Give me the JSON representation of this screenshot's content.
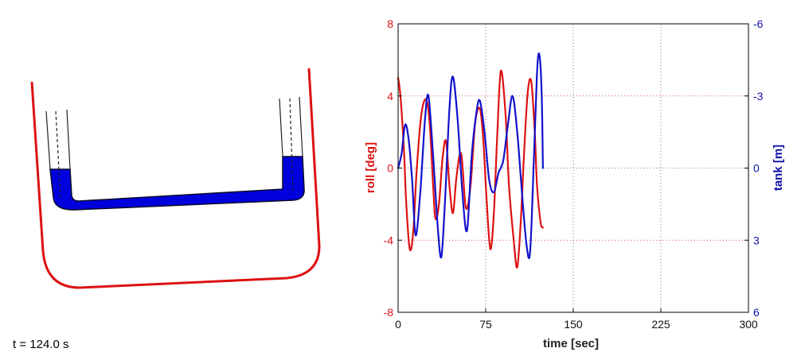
{
  "simulation": {
    "time_label": "t = 124.0 s",
    "ship_hull_color": "#dd1111",
    "water_color": "#0000dd"
  },
  "chart_data": {
    "type": "line",
    "xlabel": "time [sec]",
    "ylabel_left": "roll [deg]",
    "ylabel_right": "tank [m]",
    "xlim": [
      0,
      300
    ],
    "ylim_left": [
      -8,
      8
    ],
    "ylim_right": [
      6,
      -6
    ],
    "x_ticks": [
      "0",
      "75",
      "150",
      "225",
      "300"
    ],
    "y_ticks_left": [
      "8",
      "4",
      "0",
      "-4",
      "-8"
    ],
    "y_ticks_right": [
      "-6",
      "-3",
      "0",
      "3",
      "6"
    ],
    "grid": true,
    "series": [
      {
        "name": "roll",
        "axis": "left",
        "color": "#dd1111",
        "x": [
          0,
          2,
          5,
          7,
          10,
          13,
          16,
          20,
          24,
          27,
          30,
          32,
          35,
          38,
          41,
          44,
          47,
          50,
          54,
          58,
          62,
          66,
          70,
          73,
          76,
          79,
          82,
          85,
          88,
          92,
          95,
          99,
          102,
          105,
          108,
          111,
          114,
          117,
          119,
          122,
          124
        ],
        "values": [
          5.0,
          4.0,
          1.0,
          -2.0,
          -4.5,
          -3.5,
          0.0,
          3.0,
          3.8,
          2.5,
          -1.0,
          -2.8,
          -2.0,
          0.5,
          1.5,
          -1.0,
          -2.5,
          -0.5,
          0.8,
          -2.2,
          -1.0,
          2.5,
          3.3,
          1.5,
          -2.0,
          -4.5,
          -2.5,
          2.0,
          5.4,
          3.0,
          -1.0,
          -4.0,
          -5.5,
          -3.0,
          1.0,
          4.2,
          4.8,
          2.0,
          -1.0,
          -3.0,
          -3.3
        ]
      },
      {
        "name": "tank",
        "axis": "right",
        "color": "#1111cc",
        "x": [
          0,
          3,
          6,
          9,
          12,
          15,
          19,
          23,
          26,
          30,
          34,
          37,
          40,
          44,
          47,
          51,
          55,
          59,
          63,
          67,
          70,
          74,
          78,
          82,
          86,
          90,
          94,
          98,
          102,
          106,
          110,
          113,
          116,
          119,
          121,
          123,
          124
        ],
        "values": [
          0.0,
          -0.6,
          -1.8,
          -1.2,
          0.5,
          2.8,
          1.0,
          -2.0,
          -3.0,
          -0.5,
          2.5,
          3.7,
          1.5,
          -2.5,
          -3.8,
          -2.0,
          1.0,
          2.6,
          -0.5,
          -2.3,
          -2.8,
          -1.5,
          0.5,
          1.0,
          0.2,
          -0.3,
          -1.8,
          -3.0,
          -1.5,
          1.0,
          3.2,
          3.5,
          0.0,
          -4.0,
          -4.7,
          -3.0,
          0.0
        ]
      }
    ]
  }
}
